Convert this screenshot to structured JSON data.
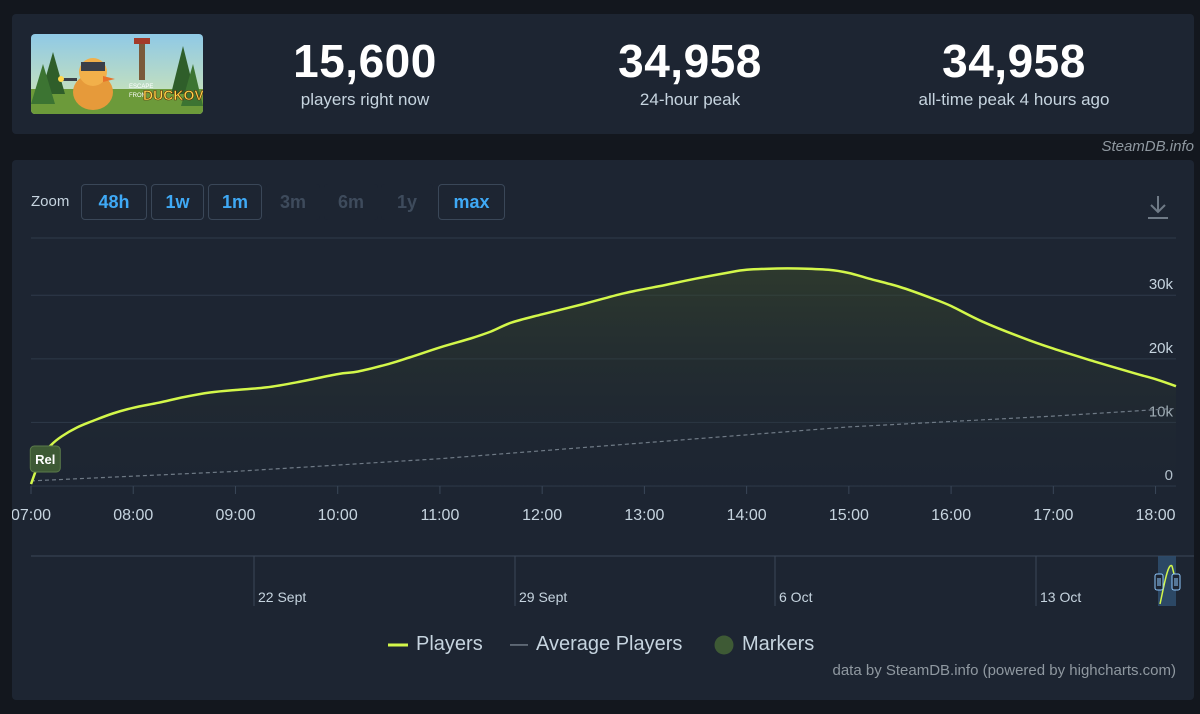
{
  "stats": [
    {
      "value": "15,600",
      "label": "players right now"
    },
    {
      "value": "34,958",
      "label": "24-hour peak"
    },
    {
      "value": "34,958",
      "label": "all-time peak 4 hours ago"
    }
  ],
  "game_logo_text": {
    "line1": "ESCAPE",
    "line2": "FROM",
    "line3": "DUCKOV"
  },
  "credit_top": "SteamDB.info",
  "zoom": {
    "label": "Zoom",
    "buttons": [
      {
        "label": "48h",
        "enabled": true
      },
      {
        "label": "1w",
        "enabled": true
      },
      {
        "label": "1m",
        "enabled": true
      },
      {
        "label": "3m",
        "enabled": false
      },
      {
        "label": "6m",
        "enabled": false
      },
      {
        "label": "1y",
        "enabled": false
      },
      {
        "label": "max",
        "enabled": true
      }
    ]
  },
  "download_icon": "download-icon",
  "legend": [
    {
      "name": "Players",
      "color": "#d3f74a"
    },
    {
      "name": "Average Players",
      "color": "#6f7a86"
    },
    {
      "name": "Markers",
      "color": "#3e5a35"
    }
  ],
  "credit_bottom": "data by SteamDB.info (powered by highcharts.com)",
  "chart_data": {
    "type": "line",
    "y_ticks": [
      "0",
      "10k",
      "20k",
      "30k"
    ],
    "ylim": [
      0,
      39000
    ],
    "x_ticks": [
      "07:00",
      "08:00",
      "09:00",
      "10:00",
      "11:00",
      "12:00",
      "13:00",
      "14:00",
      "15:00",
      "16:00",
      "17:00",
      "18:00"
    ],
    "xlim": [
      7.0,
      18.2
    ],
    "marker": {
      "label": "Rel",
      "x": 7.13
    },
    "series": [
      {
        "name": "Players",
        "color": "#d3f74a",
        "x": [
          7.0,
          7.1,
          7.2,
          7.3,
          7.45,
          7.6,
          7.8,
          8.0,
          8.25,
          8.5,
          8.75,
          9.0,
          9.3,
          9.6,
          10.0,
          10.2,
          10.5,
          10.7,
          11.0,
          11.3,
          11.5,
          11.7,
          12.0,
          12.4,
          12.8,
          13.2,
          13.5,
          13.8,
          14.0,
          14.3,
          14.5,
          14.8,
          15.0,
          15.2,
          15.5,
          15.8,
          16.0,
          16.3,
          16.7,
          17.0,
          17.4,
          17.8,
          18.0,
          18.2
        ],
        "y": [
          300,
          4500,
          6500,
          7800,
          9200,
          10200,
          11400,
          12300,
          13100,
          14000,
          14700,
          15100,
          15500,
          16300,
          17600,
          18000,
          19200,
          20200,
          21800,
          23200,
          24300,
          25700,
          27000,
          28600,
          30300,
          31600,
          32600,
          33500,
          34000,
          34200,
          34200,
          34000,
          33500,
          32600,
          31300,
          29600,
          28300,
          25900,
          23300,
          21600,
          19600,
          17700,
          16800,
          15700
        ]
      },
      {
        "name": "Average Players",
        "color": "#6f7a86",
        "x": [
          7.0,
          9.0,
          11.0,
          13.0,
          15.0,
          17.0,
          18.2
        ],
        "y": [
          800,
          2300,
          4300,
          6800,
          9300,
          11000,
          12200
        ]
      }
    ]
  },
  "navigator": {
    "labels": [
      "22 Sept",
      "29 Sept",
      "6 Oct",
      "13 Oct"
    ]
  }
}
